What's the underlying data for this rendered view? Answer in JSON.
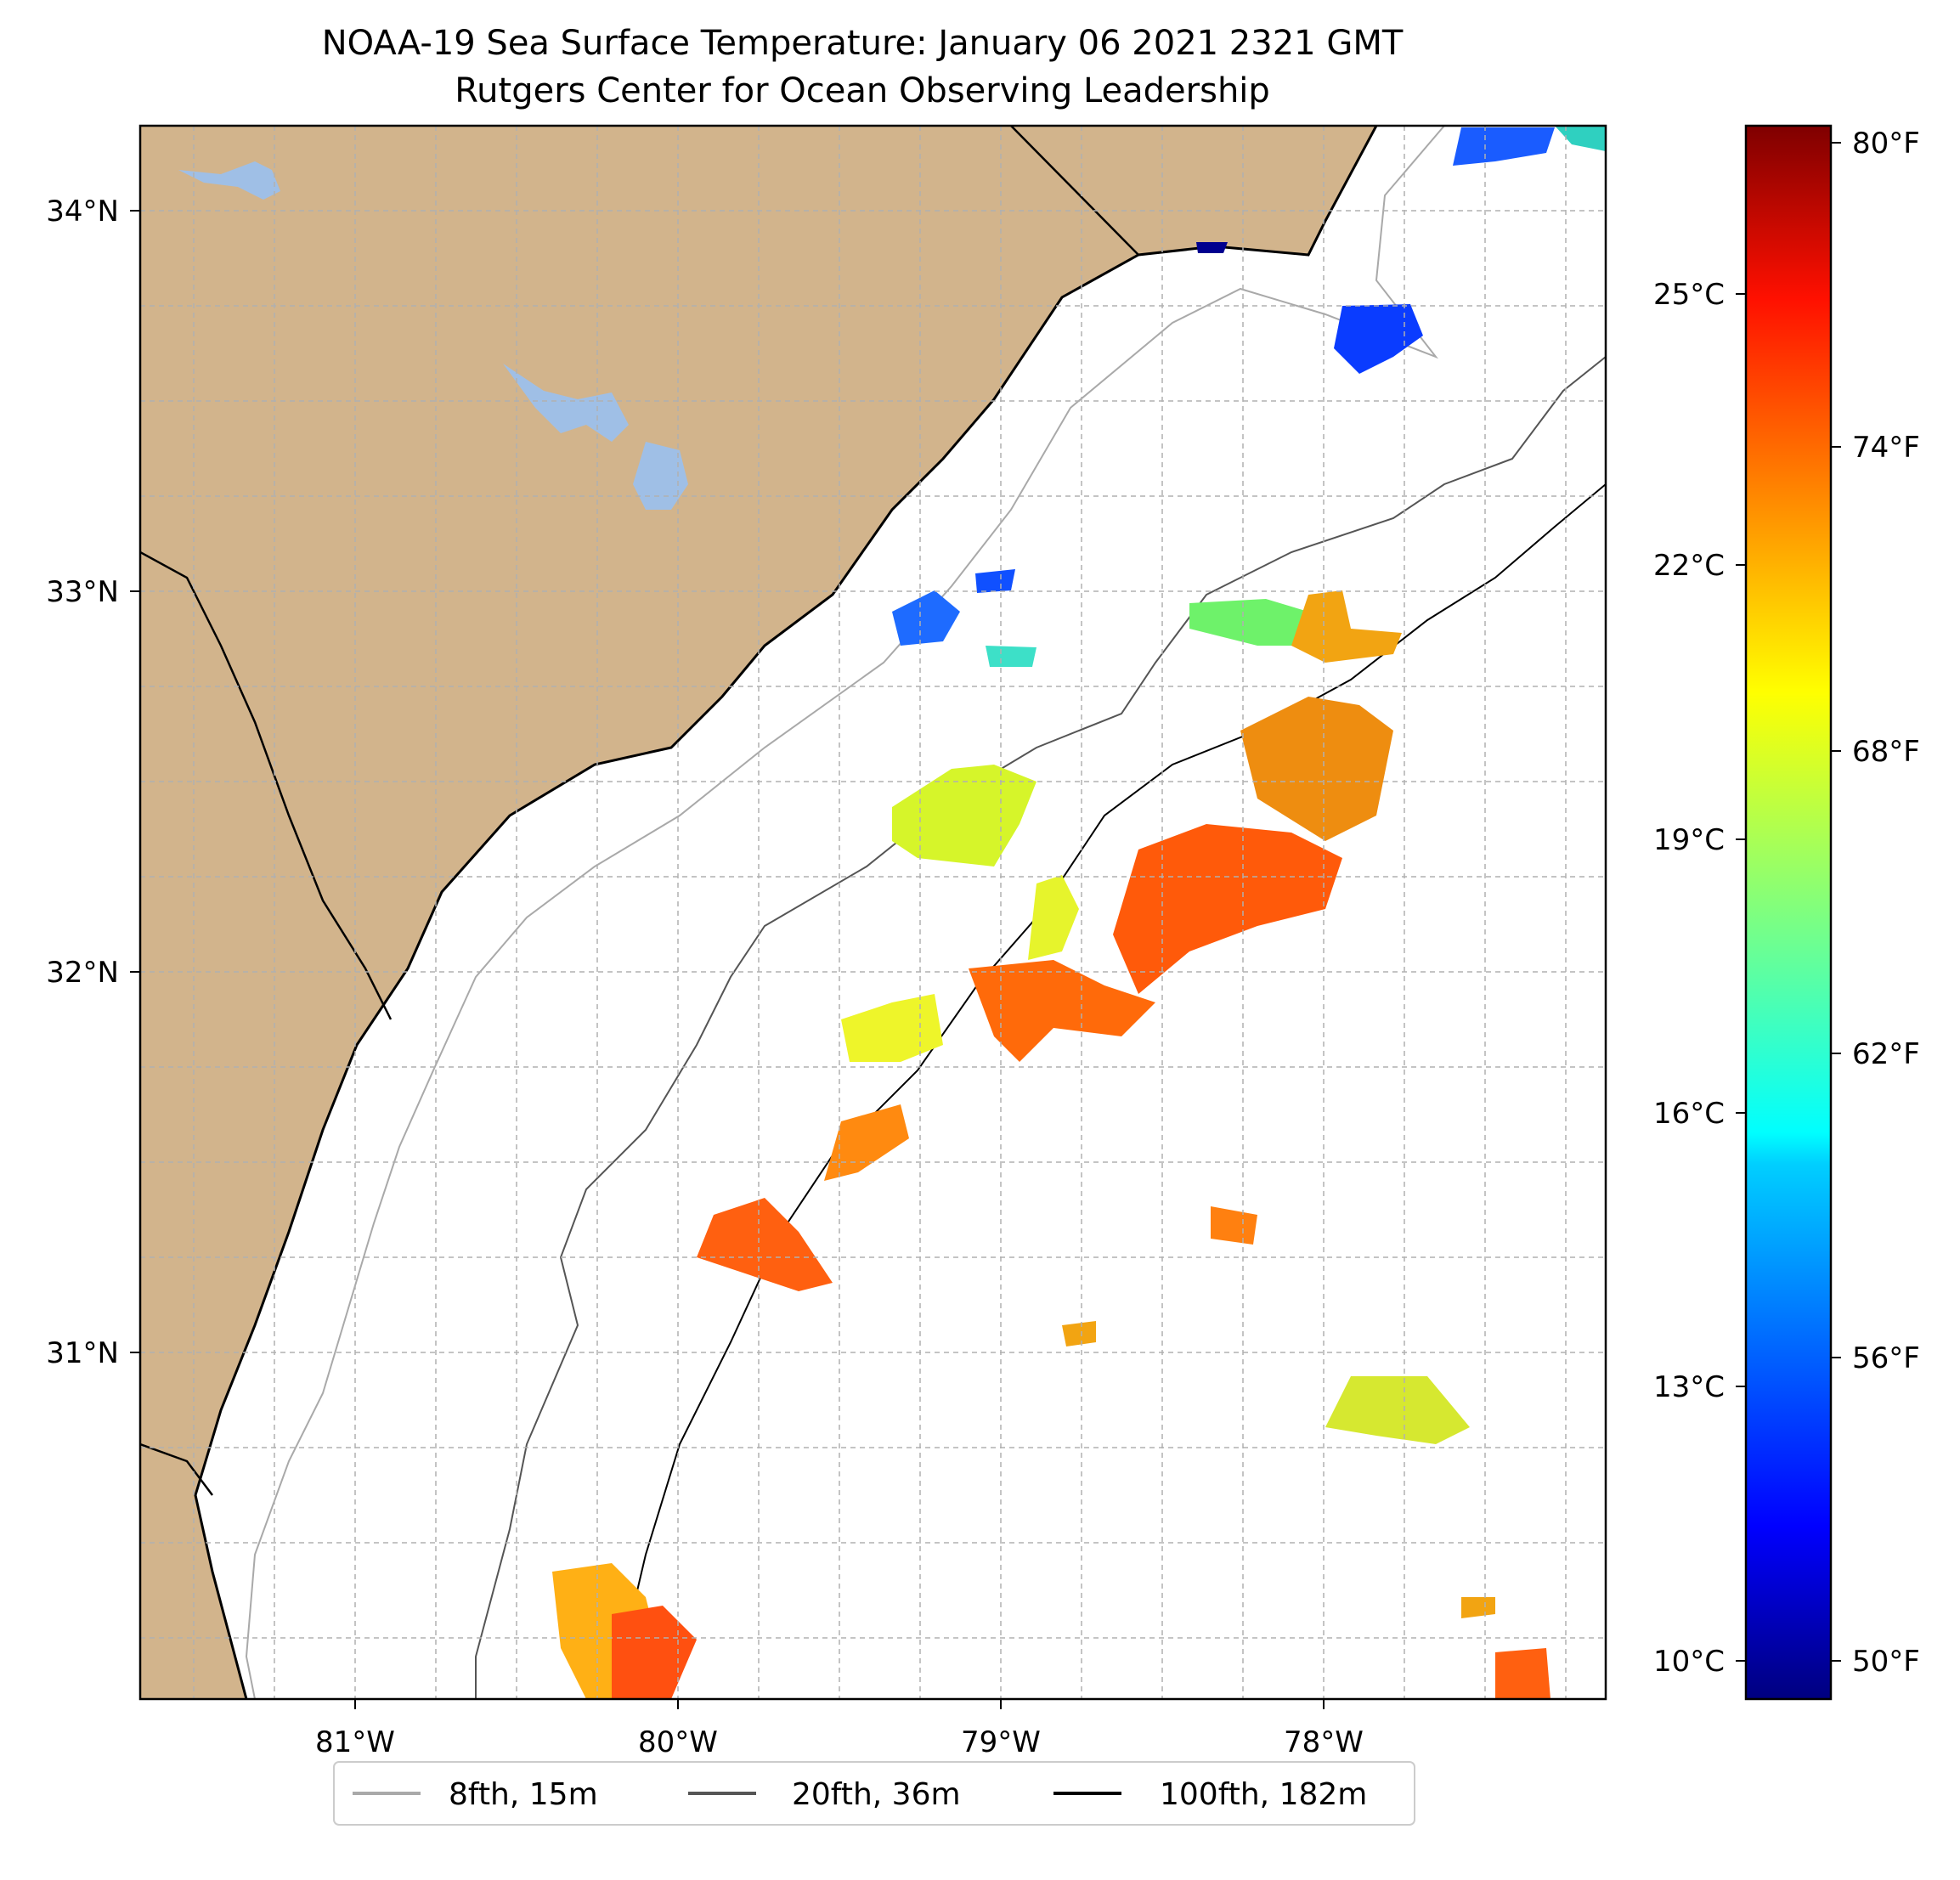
{
  "title": {
    "line1": "NOAA-19 Sea Surface Temperature: January 06 2021 2321 GMT",
    "line2": "Rutgers Center for Ocean Observing Leadership"
  },
  "map": {
    "lon_ticks": [
      "81°W",
      "80°W",
      "79°W",
      "78°W"
    ],
    "lat_ticks": [
      "34°N",
      "33°N",
      "32°N",
      "31°N"
    ],
    "land_color": "#d2b48c",
    "water_color": "#9fbfe6"
  },
  "colorbar": {
    "colormap": "jet",
    "celsius_labels": [
      "25°C",
      "22°C",
      "19°C",
      "16°C",
      "13°C",
      "10°C"
    ],
    "fahrenheit_labels": [
      "80°F",
      "74°F",
      "68°F",
      "62°F",
      "56°F",
      "50°F"
    ]
  },
  "legend": {
    "items": [
      {
        "label": "8fth, 15m",
        "color": "#a9a9a9"
      },
      {
        "label": "20fth, 36m",
        "color": "#555555"
      },
      {
        "label": "100fth, 182m",
        "color": "#000000"
      }
    ]
  }
}
